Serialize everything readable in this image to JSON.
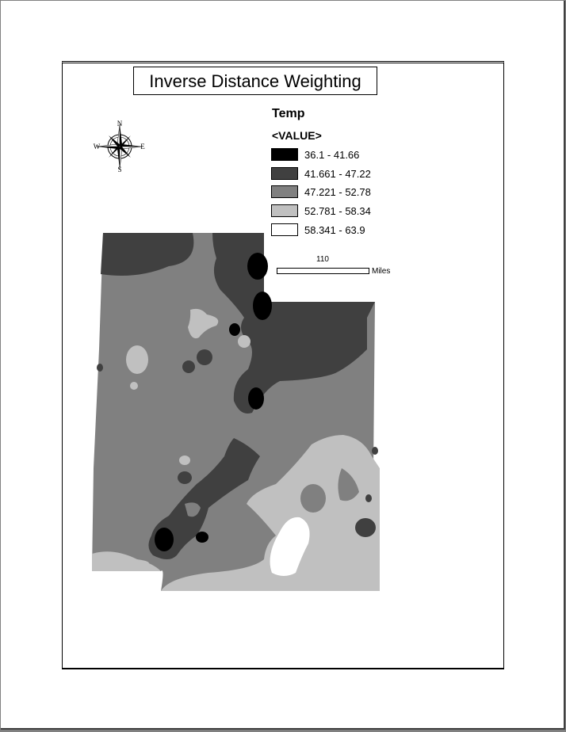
{
  "title": "Inverse Distance Weighting",
  "north_arrow": {
    "icon": "compass-rose-icon",
    "n": "N",
    "s": "S",
    "e": "E",
    "w": "W"
  },
  "legend": {
    "title": "Temp",
    "field": "<VALUE>",
    "classes": [
      {
        "label": "36.1 - 41.66",
        "color": "#000000"
      },
      {
        "label": "41.661 - 47.22",
        "color": "#404040"
      },
      {
        "label": "47.221 - 52.78",
        "color": "#808080"
      },
      {
        "label": "52.781 - 58.34",
        "color": "#c0c0c0"
      },
      {
        "label": "58.341 - 63.9",
        "color": "#ffffff"
      }
    ]
  },
  "scale_bar": {
    "tick": "110",
    "unit": "Miles"
  }
}
